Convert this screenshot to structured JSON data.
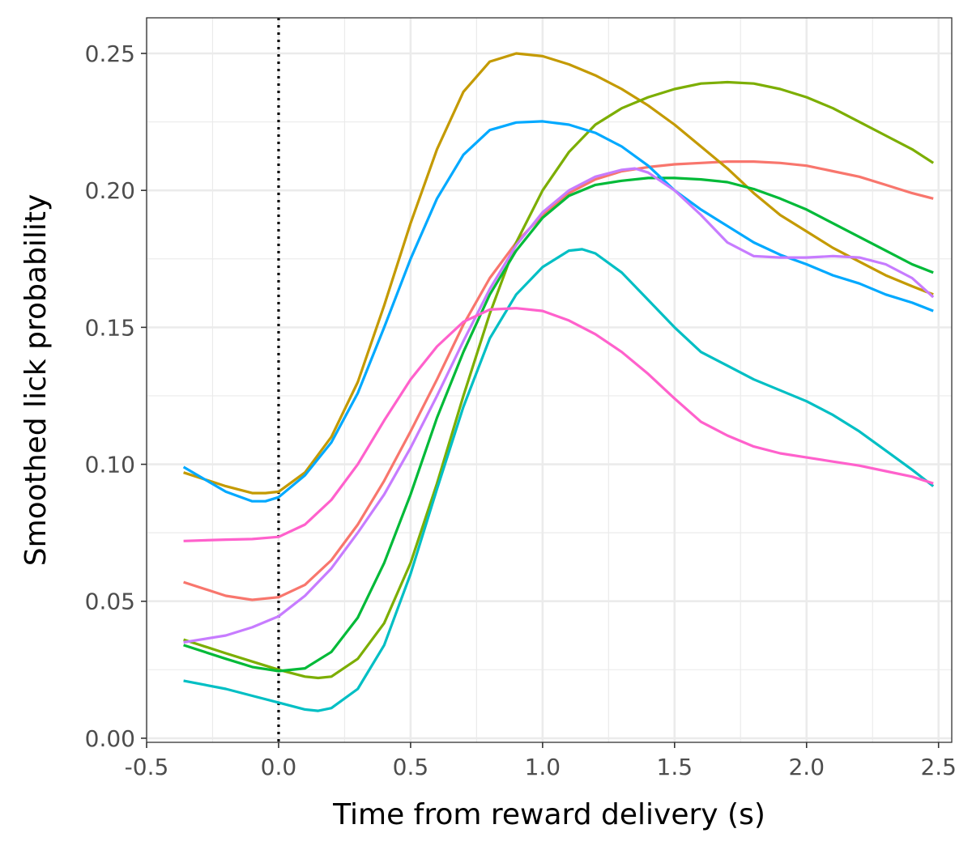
{
  "chart_data": {
    "type": "line",
    "xlabel": "Time from reward delivery (s)",
    "ylabel": "Smoothed lick probability",
    "xlim": [
      -0.5,
      2.55
    ],
    "ylim": [
      -0.0015,
      0.263
    ],
    "xticks": [
      -0.5,
      0.0,
      0.5,
      1.0,
      1.5,
      2.0,
      2.5
    ],
    "xtick_labels": [
      "-0.5",
      "0.0",
      "0.5",
      "1.0",
      "1.5",
      "2.0",
      "2.5"
    ],
    "yticks": [
      0.0,
      0.05,
      0.1,
      0.15,
      0.2,
      0.25
    ],
    "ytick_labels": [
      "0.00",
      "0.05",
      "0.10",
      "0.15",
      "0.20",
      "0.25"
    ],
    "vline": {
      "x": 0.0,
      "style": "dotted",
      "color": "#000000"
    },
    "grid": true,
    "legend": "none",
    "series": [
      {
        "color": "#F8766D",
        "points": [
          [
            -0.36,
            0.057
          ],
          [
            -0.2,
            0.052
          ],
          [
            -0.1,
            0.0505
          ],
          [
            0.0,
            0.0515
          ],
          [
            0.1,
            0.056
          ],
          [
            0.2,
            0.065
          ],
          [
            0.3,
            0.078
          ],
          [
            0.4,
            0.094
          ],
          [
            0.5,
            0.112
          ],
          [
            0.6,
            0.131
          ],
          [
            0.7,
            0.151
          ],
          [
            0.8,
            0.168
          ],
          [
            0.9,
            0.181
          ],
          [
            1.0,
            0.191
          ],
          [
            1.1,
            0.199
          ],
          [
            1.2,
            0.204
          ],
          [
            1.3,
            0.207
          ],
          [
            1.4,
            0.2085
          ],
          [
            1.5,
            0.2095
          ],
          [
            1.6,
            0.21
          ],
          [
            1.7,
            0.2105
          ],
          [
            1.8,
            0.2105
          ],
          [
            1.9,
            0.21
          ],
          [
            2.0,
            0.209
          ],
          [
            2.1,
            0.207
          ],
          [
            2.2,
            0.205
          ],
          [
            2.3,
            0.202
          ],
          [
            2.4,
            0.199
          ],
          [
            2.48,
            0.197
          ]
        ]
      },
      {
        "color": "#C49A00",
        "points": [
          [
            -0.36,
            0.097
          ],
          [
            -0.2,
            0.092
          ],
          [
            -0.1,
            0.0895
          ],
          [
            -0.05,
            0.0895
          ],
          [
            0.0,
            0.09
          ],
          [
            0.1,
            0.097
          ],
          [
            0.2,
            0.11
          ],
          [
            0.3,
            0.13
          ],
          [
            0.4,
            0.158
          ],
          [
            0.5,
            0.188
          ],
          [
            0.6,
            0.215
          ],
          [
            0.7,
            0.236
          ],
          [
            0.8,
            0.247
          ],
          [
            0.9,
            0.25
          ],
          [
            1.0,
            0.249
          ],
          [
            1.1,
            0.246
          ],
          [
            1.2,
            0.242
          ],
          [
            1.3,
            0.237
          ],
          [
            1.4,
            0.231
          ],
          [
            1.5,
            0.224
          ],
          [
            1.6,
            0.216
          ],
          [
            1.7,
            0.208
          ],
          [
            1.8,
            0.199
          ],
          [
            1.9,
            0.191
          ],
          [
            2.0,
            0.185
          ],
          [
            2.1,
            0.179
          ],
          [
            2.2,
            0.174
          ],
          [
            2.3,
            0.169
          ],
          [
            2.4,
            0.165
          ],
          [
            2.48,
            0.162
          ]
        ]
      },
      {
        "color": "#7CAE00",
        "points": [
          [
            -0.36,
            0.036
          ],
          [
            -0.2,
            0.031
          ],
          [
            -0.1,
            0.028
          ],
          [
            0.0,
            0.025
          ],
          [
            0.1,
            0.0225
          ],
          [
            0.15,
            0.022
          ],
          [
            0.2,
            0.0225
          ],
          [
            0.3,
            0.029
          ],
          [
            0.4,
            0.042
          ],
          [
            0.5,
            0.064
          ],
          [
            0.6,
            0.093
          ],
          [
            0.7,
            0.125
          ],
          [
            0.8,
            0.155
          ],
          [
            0.9,
            0.181
          ],
          [
            1.0,
            0.2
          ],
          [
            1.1,
            0.214
          ],
          [
            1.2,
            0.224
          ],
          [
            1.3,
            0.23
          ],
          [
            1.4,
            0.234
          ],
          [
            1.5,
            0.237
          ],
          [
            1.6,
            0.239
          ],
          [
            1.7,
            0.2395
          ],
          [
            1.8,
            0.239
          ],
          [
            1.9,
            0.237
          ],
          [
            2.0,
            0.234
          ],
          [
            2.1,
            0.23
          ],
          [
            2.2,
            0.225
          ],
          [
            2.3,
            0.22
          ],
          [
            2.4,
            0.215
          ],
          [
            2.48,
            0.21
          ]
        ]
      },
      {
        "color": "#00BA38",
        "points": [
          [
            -0.36,
            0.034
          ],
          [
            -0.2,
            0.029
          ],
          [
            -0.1,
            0.026
          ],
          [
            0.0,
            0.0245
          ],
          [
            0.1,
            0.0255
          ],
          [
            0.2,
            0.0315
          ],
          [
            0.3,
            0.044
          ],
          [
            0.4,
            0.064
          ],
          [
            0.5,
            0.089
          ],
          [
            0.6,
            0.117
          ],
          [
            0.7,
            0.141
          ],
          [
            0.8,
            0.162
          ],
          [
            0.9,
            0.178
          ],
          [
            1.0,
            0.19
          ],
          [
            1.1,
            0.198
          ],
          [
            1.2,
            0.202
          ],
          [
            1.3,
            0.2035
          ],
          [
            1.4,
            0.2045
          ],
          [
            1.5,
            0.2045
          ],
          [
            1.6,
            0.204
          ],
          [
            1.7,
            0.203
          ],
          [
            1.8,
            0.2005
          ],
          [
            1.9,
            0.197
          ],
          [
            2.0,
            0.193
          ],
          [
            2.1,
            0.188
          ],
          [
            2.2,
            0.183
          ],
          [
            2.3,
            0.178
          ],
          [
            2.4,
            0.173
          ],
          [
            2.48,
            0.17
          ]
        ]
      },
      {
        "color": "#00BFC4",
        "points": [
          [
            -0.36,
            0.021
          ],
          [
            -0.2,
            0.018
          ],
          [
            -0.1,
            0.0155
          ],
          [
            0.0,
            0.013
          ],
          [
            0.1,
            0.0105
          ],
          [
            0.15,
            0.01
          ],
          [
            0.2,
            0.011
          ],
          [
            0.3,
            0.018
          ],
          [
            0.4,
            0.034
          ],
          [
            0.5,
            0.06
          ],
          [
            0.6,
            0.091
          ],
          [
            0.7,
            0.121
          ],
          [
            0.8,
            0.146
          ],
          [
            0.9,
            0.162
          ],
          [
            1.0,
            0.172
          ],
          [
            1.1,
            0.178
          ],
          [
            1.15,
            0.1785
          ],
          [
            1.2,
            0.177
          ],
          [
            1.3,
            0.17
          ],
          [
            1.4,
            0.16
          ],
          [
            1.5,
            0.15
          ],
          [
            1.6,
            0.141
          ],
          [
            1.7,
            0.136
          ],
          [
            1.8,
            0.131
          ],
          [
            1.9,
            0.127
          ],
          [
            2.0,
            0.123
          ],
          [
            2.1,
            0.118
          ],
          [
            2.2,
            0.112
          ],
          [
            2.3,
            0.105
          ],
          [
            2.4,
            0.098
          ],
          [
            2.48,
            0.092
          ]
        ]
      },
      {
        "color": "#00A9FF",
        "points": [
          [
            -0.36,
            0.099
          ],
          [
            -0.2,
            0.09
          ],
          [
            -0.1,
            0.0865
          ],
          [
            -0.05,
            0.0865
          ],
          [
            0.0,
            0.088
          ],
          [
            0.1,
            0.096
          ],
          [
            0.2,
            0.108
          ],
          [
            0.3,
            0.126
          ],
          [
            0.4,
            0.15
          ],
          [
            0.5,
            0.175
          ],
          [
            0.6,
            0.197
          ],
          [
            0.7,
            0.213
          ],
          [
            0.8,
            0.222
          ],
          [
            0.9,
            0.2248
          ],
          [
            1.0,
            0.2252
          ],
          [
            1.1,
            0.224
          ],
          [
            1.2,
            0.221
          ],
          [
            1.3,
            0.216
          ],
          [
            1.4,
            0.209
          ],
          [
            1.5,
            0.2
          ],
          [
            1.6,
            0.193
          ],
          [
            1.7,
            0.187
          ],
          [
            1.8,
            0.181
          ],
          [
            1.9,
            0.1765
          ],
          [
            2.0,
            0.173
          ],
          [
            2.1,
            0.169
          ],
          [
            2.2,
            0.166
          ],
          [
            2.3,
            0.162
          ],
          [
            2.4,
            0.159
          ],
          [
            2.48,
            0.156
          ]
        ]
      },
      {
        "color": "#C77CFF",
        "points": [
          [
            -0.36,
            0.035
          ],
          [
            -0.2,
            0.0375
          ],
          [
            -0.1,
            0.0405
          ],
          [
            0.0,
            0.0445
          ],
          [
            0.1,
            0.052
          ],
          [
            0.2,
            0.062
          ],
          [
            0.3,
            0.075
          ],
          [
            0.4,
            0.089
          ],
          [
            0.5,
            0.106
          ],
          [
            0.6,
            0.125
          ],
          [
            0.7,
            0.145
          ],
          [
            0.8,
            0.164
          ],
          [
            0.9,
            0.18
          ],
          [
            1.0,
            0.192
          ],
          [
            1.1,
            0.2
          ],
          [
            1.2,
            0.205
          ],
          [
            1.3,
            0.2075
          ],
          [
            1.35,
            0.208
          ],
          [
            1.4,
            0.2065
          ],
          [
            1.5,
            0.2
          ],
          [
            1.6,
            0.191
          ],
          [
            1.7,
            0.181
          ],
          [
            1.8,
            0.176
          ],
          [
            1.9,
            0.1755
          ],
          [
            2.0,
            0.1755
          ],
          [
            2.1,
            0.176
          ],
          [
            2.2,
            0.1755
          ],
          [
            2.3,
            0.173
          ],
          [
            2.4,
            0.168
          ],
          [
            2.48,
            0.161
          ]
        ]
      },
      {
        "color": "#FF61CC",
        "points": [
          [
            -0.36,
            0.072
          ],
          [
            -0.2,
            0.0725
          ],
          [
            -0.1,
            0.0727
          ],
          [
            0.0,
            0.0735
          ],
          [
            0.1,
            0.078
          ],
          [
            0.2,
            0.087
          ],
          [
            0.3,
            0.1
          ],
          [
            0.4,
            0.116
          ],
          [
            0.5,
            0.131
          ],
          [
            0.6,
            0.143
          ],
          [
            0.7,
            0.152
          ],
          [
            0.8,
            0.1565
          ],
          [
            0.9,
            0.157
          ],
          [
            1.0,
            0.156
          ],
          [
            1.1,
            0.1525
          ],
          [
            1.2,
            0.1475
          ],
          [
            1.3,
            0.141
          ],
          [
            1.4,
            0.133
          ],
          [
            1.5,
            0.124
          ],
          [
            1.6,
            0.1155
          ],
          [
            1.7,
            0.1105
          ],
          [
            1.8,
            0.1065
          ],
          [
            1.9,
            0.104
          ],
          [
            2.0,
            0.1025
          ],
          [
            2.1,
            0.101
          ],
          [
            2.2,
            0.0995
          ],
          [
            2.3,
            0.0975
          ],
          [
            2.4,
            0.0955
          ],
          [
            2.48,
            0.093
          ]
        ]
      }
    ]
  }
}
